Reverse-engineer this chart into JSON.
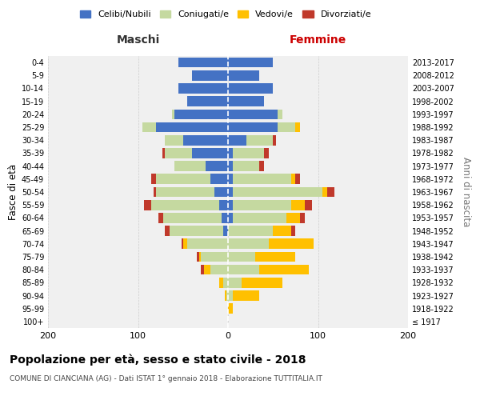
{
  "age_groups": [
    "100+",
    "95-99",
    "90-94",
    "85-89",
    "80-84",
    "75-79",
    "70-74",
    "65-69",
    "60-64",
    "55-59",
    "50-54",
    "45-49",
    "40-44",
    "35-39",
    "30-34",
    "25-29",
    "20-24",
    "15-19",
    "10-14",
    "5-9",
    "0-4"
  ],
  "birth_years": [
    "≤ 1917",
    "1918-1922",
    "1923-1927",
    "1928-1932",
    "1933-1937",
    "1938-1942",
    "1943-1947",
    "1948-1952",
    "1953-1957",
    "1958-1962",
    "1963-1967",
    "1968-1972",
    "1973-1977",
    "1978-1982",
    "1983-1987",
    "1988-1992",
    "1993-1997",
    "1998-2002",
    "2003-2007",
    "2008-2012",
    "2013-2017"
  ],
  "males_celibi": [
    0,
    0,
    0,
    0,
    0,
    0,
    0,
    5,
    7,
    10,
    15,
    20,
    25,
    40,
    50,
    80,
    60,
    45,
    55,
    40,
    55
  ],
  "males_coniugati": [
    0,
    0,
    2,
    5,
    20,
    30,
    45,
    60,
    65,
    75,
    65,
    60,
    35,
    30,
    20,
    15,
    2,
    0,
    0,
    0,
    0
  ],
  "males_vedovi": [
    0,
    0,
    2,
    5,
    7,
    2,
    5,
    0,
    0,
    0,
    0,
    0,
    0,
    0,
    0,
    0,
    0,
    0,
    0,
    0,
    0
  ],
  "males_divorziati": [
    0,
    0,
    0,
    0,
    3,
    3,
    2,
    5,
    5,
    8,
    3,
    5,
    0,
    3,
    0,
    0,
    0,
    0,
    0,
    0,
    0
  ],
  "females_nubili": [
    0,
    0,
    0,
    0,
    0,
    0,
    0,
    0,
    5,
    5,
    5,
    5,
    5,
    5,
    20,
    55,
    55,
    40,
    50,
    35,
    50
  ],
  "females_coniugate": [
    0,
    0,
    5,
    15,
    35,
    30,
    45,
    50,
    60,
    65,
    100,
    65,
    30,
    35,
    30,
    20,
    5,
    0,
    0,
    0,
    0
  ],
  "females_vedove": [
    0,
    5,
    30,
    45,
    55,
    45,
    50,
    20,
    15,
    15,
    5,
    5,
    0,
    0,
    0,
    5,
    0,
    0,
    0,
    0,
    0
  ],
  "females_divorziate": [
    0,
    0,
    0,
    0,
    0,
    0,
    0,
    5,
    5,
    8,
    8,
    5,
    5,
    5,
    3,
    0,
    0,
    0,
    0,
    0,
    0
  ],
  "col_celibi": "#4472c4",
  "col_coniugati": "#c5d9a0",
  "col_vedovi": "#ffc000",
  "col_divorziati": "#c0392b",
  "legend_labels": [
    "Celibi/Nubili",
    "Coniugati/e",
    "Vedovi/e",
    "Divorziati/e"
  ],
  "title": "Popolazione per età, sesso e stato civile - 2018",
  "subtitle": "COMUNE DI CIANCIANA (AG) - Dati ISTAT 1° gennaio 2018 - Elaborazione TUTTITALIA.IT",
  "label_maschi": "Maschi",
  "label_femmine": "Femmine",
  "label_fasce": "Fasce di età",
  "label_anni": "Anni di nascita",
  "xlim": 200,
  "bar_height": 0.78
}
